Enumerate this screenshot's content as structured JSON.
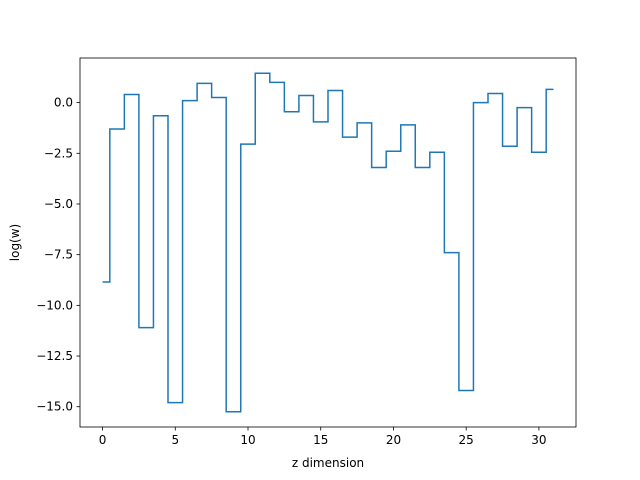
{
  "chart_data": {
    "type": "line",
    "drawstyle": "steps-mid",
    "title": "",
    "xlabel": "z dimension",
    "ylabel": "log(w)",
    "xlim": [
      -1.55,
      32.55
    ],
    "ylim": [
      -16.0,
      2.2
    ],
    "xticks": [
      0,
      5,
      10,
      15,
      20,
      25,
      30
    ],
    "xtick_labels": [
      "0",
      "5",
      "10",
      "15",
      "20",
      "25",
      "30"
    ],
    "yticks": [
      0.0,
      -2.5,
      -5.0,
      -7.5,
      -10.0,
      -12.5,
      -15.0
    ],
    "ytick_labels": [
      "0.0",
      "−2.5",
      "−5.0",
      "−7.5",
      "−10.0",
      "−12.5",
      "−15.0"
    ],
    "grid": false,
    "color": "#1f77b4",
    "x": [
      0,
      1,
      2,
      3,
      4,
      5,
      6,
      7,
      8,
      9,
      10,
      11,
      12,
      13,
      14,
      15,
      16,
      17,
      18,
      19,
      20,
      21,
      22,
      23,
      24,
      25,
      26,
      27,
      28,
      29,
      30,
      31
    ],
    "y": [
      -8.85,
      -1.3,
      0.4,
      -11.1,
      -0.65,
      -14.8,
      0.1,
      0.95,
      0.25,
      -15.25,
      -2.05,
      1.45,
      1.0,
      -0.45,
      0.35,
      -0.95,
      0.6,
      -1.7,
      -1.0,
      -3.2,
      -2.4,
      -1.1,
      -3.2,
      -2.45,
      -7.4,
      -14.2,
      0.0,
      0.45,
      -2.15,
      -0.25,
      -2.45,
      0.65
    ]
  }
}
